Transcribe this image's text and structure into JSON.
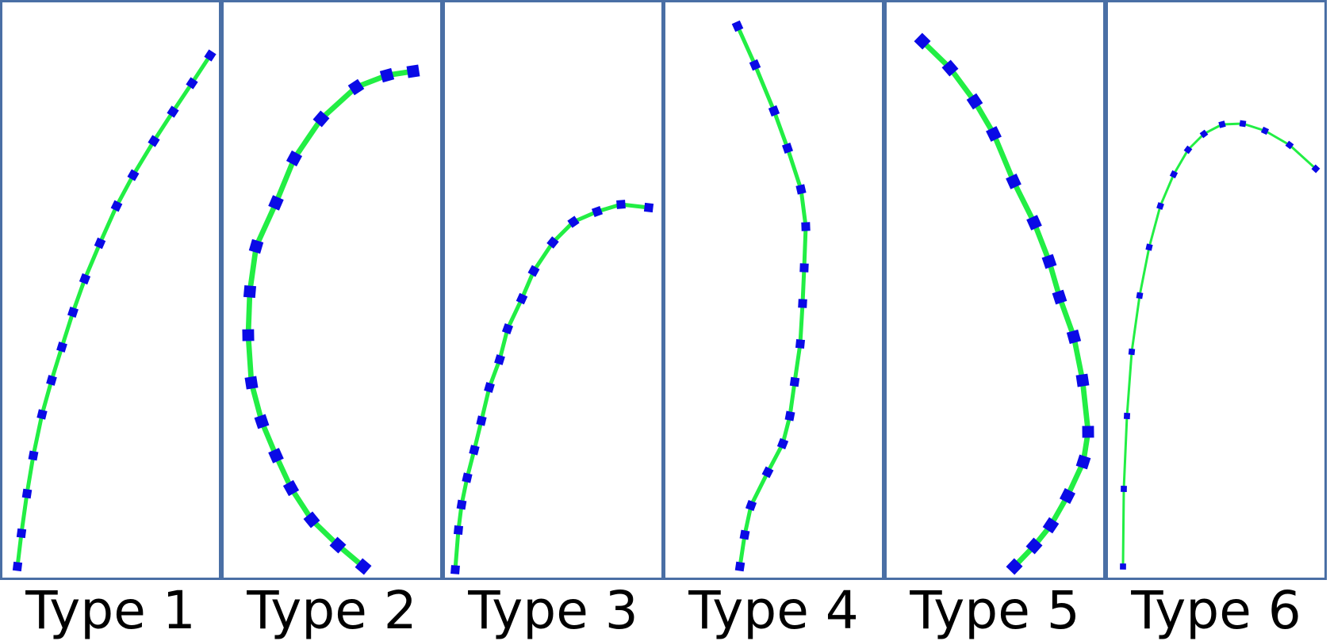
{
  "colors": {
    "border": "#4a6fa5",
    "line": "#22ee44",
    "marker": "#0a0ae6"
  },
  "panels": [
    {
      "label": "Type 1",
      "marker_scale": 1.0,
      "line_weight": 1.0,
      "points": [
        [
          22,
          715
        ],
        [
          27,
          673
        ],
        [
          34,
          623
        ],
        [
          42,
          575
        ],
        [
          53,
          523
        ],
        [
          65,
          480
        ],
        [
          78,
          438
        ],
        [
          92,
          394
        ],
        [
          107,
          352
        ],
        [
          126,
          307
        ],
        [
          147,
          260
        ],
        [
          168,
          221
        ],
        [
          194,
          178
        ],
        [
          218,
          141
        ],
        [
          242,
          105
        ],
        [
          265,
          70
        ]
      ]
    },
    {
      "label": "Type 2",
      "marker_scale": 1.35,
      "line_weight": 1.35,
      "points": [
        [
          458,
          715
        ],
        [
          426,
          688
        ],
        [
          393,
          656
        ],
        [
          367,
          616
        ],
        [
          348,
          575
        ],
        [
          330,
          532
        ],
        [
          317,
          483
        ],
        [
          313,
          423
        ],
        [
          315,
          368
        ],
        [
          323,
          311
        ],
        [
          348,
          256
        ],
        [
          371,
          200
        ],
        [
          405,
          150
        ],
        [
          449,
          110
        ],
        [
          488,
          95
        ],
        [
          521,
          90
        ]
      ]
    },
    {
      "label": "Type 3",
      "marker_scale": 1.0,
      "line_weight": 1.0,
      "points": [
        [
          574,
          719
        ],
        [
          578,
          669
        ],
        [
          582,
          637
        ],
        [
          589,
          603
        ],
        [
          598,
          568
        ],
        [
          607,
          531
        ],
        [
          617,
          489
        ],
        [
          630,
          454
        ],
        [
          640,
          415
        ],
        [
          658,
          377
        ],
        [
          673,
          342
        ],
        [
          697,
          306
        ],
        [
          723,
          280
        ],
        [
          753,
          267
        ],
        [
          783,
          258
        ],
        [
          818,
          262
        ]
      ]
    },
    {
      "label": "Type 4",
      "marker_scale": 1.0,
      "line_weight": 1.0,
      "points": [
        [
          933,
          715
        ],
        [
          939,
          675
        ],
        [
          947,
          638
        ],
        [
          968,
          596
        ],
        [
          987,
          560
        ],
        [
          996,
          525
        ],
        [
          1002,
          482
        ],
        [
          1009,
          434
        ],
        [
          1012,
          383
        ],
        [
          1014,
          338
        ],
        [
          1016,
          286
        ],
        [
          1010,
          239
        ],
        [
          993,
          187
        ],
        [
          976,
          140
        ],
        [
          952,
          82
        ],
        [
          930,
          33
        ]
      ]
    },
    {
      "label": "Type 5",
      "marker_scale": 1.35,
      "line_weight": 1.35,
      "points": [
        [
          1279,
          715
        ],
        [
          1304,
          689
        ],
        [
          1325,
          663
        ],
        [
          1346,
          626
        ],
        [
          1366,
          583
        ],
        [
          1372,
          545
        ],
        [
          1365,
          480
        ],
        [
          1354,
          425
        ],
        [
          1336,
          375
        ],
        [
          1323,
          330
        ],
        [
          1304,
          281
        ],
        [
          1278,
          229
        ],
        [
          1253,
          169
        ],
        [
          1229,
          128
        ],
        [
          1198,
          86
        ],
        [
          1163,
          52
        ]
      ]
    },
    {
      "label": "Type 6",
      "marker_scale": 0.7,
      "line_weight": 0.6,
      "points": [
        [
          1416,
          715
        ],
        [
          1417,
          617
        ],
        [
          1421,
          525
        ],
        [
          1427,
          444
        ],
        [
          1437,
          373
        ],
        [
          1449,
          312
        ],
        [
          1463,
          260
        ],
        [
          1480,
          220
        ],
        [
          1498,
          189
        ],
        [
          1518,
          169
        ],
        [
          1541,
          157
        ],
        [
          1567,
          156
        ],
        [
          1595,
          165
        ],
        [
          1626,
          183
        ],
        [
          1659,
          213
        ]
      ]
    }
  ]
}
